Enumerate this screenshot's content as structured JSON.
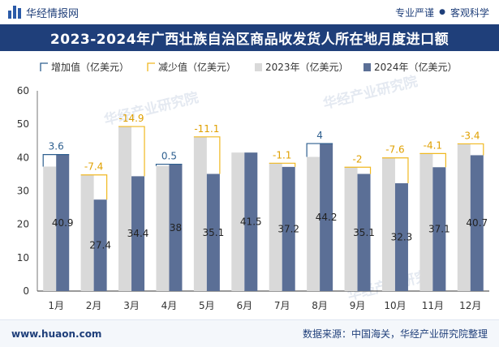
{
  "header": {
    "brand": "华经情报网",
    "tags": [
      "专业严谨",
      "●",
      "客观科学"
    ],
    "title": "2023-2024年广西壮族自治区商品收发货人所在地月度进口额"
  },
  "legend": [
    "增加值（亿美元）",
    "减少值（亿美元）",
    "2023年（亿美元）",
    "2024年（亿美元）"
  ],
  "watermark": "华经产业研究院",
  "footer": {
    "website": "www.huaon.com",
    "source": "数据来源：中国海关，华经产业研究院整理"
  },
  "colors": {
    "bar_2023": "#d9d9d9",
    "bar_2024": "#5b6f96",
    "increase": "#2e5f8f",
    "decrease": "#f0b820",
    "increase_label": "#2e5f8f",
    "decrease_label": "#e0a000"
  },
  "chart_data": {
    "type": "bar",
    "categories": [
      "1月",
      "2月",
      "3月",
      "4月",
      "5月",
      "6月",
      "7月",
      "8月",
      "9月",
      "10月",
      "11月",
      "12月"
    ],
    "series": [
      {
        "name": "2023年（亿美元）",
        "values": [
          37.3,
          34.8,
          49.3,
          37.5,
          46.2,
          41.5,
          38.3,
          40.2,
          37.1,
          39.9,
          41.2,
          44.1
        ]
      },
      {
        "name": "2024年（亿美元）",
        "values": [
          40.9,
          27.4,
          34.4,
          38,
          35.1,
          41.5,
          37.2,
          44.2,
          35.1,
          32.3,
          37.1,
          40.7
        ]
      }
    ],
    "change_labels": [
      "3.6",
      "-7.4",
      "-14.9",
      "0.5",
      "-11.1",
      "",
      "-1.1",
      "4",
      "-2",
      "-7.6",
      "-4.1",
      "-3.4"
    ],
    "value_labels": [
      "40.9",
      "27.4",
      "34.4",
      "38",
      "35.1",
      "41.5",
      "37.2",
      "44.2",
      "35.1",
      "32.3",
      "37.1",
      "40.7"
    ],
    "ylim": [
      0,
      60
    ],
    "yticks": [
      0,
      10,
      20,
      30,
      40,
      50,
      60
    ],
    "xlabel": "",
    "ylabel": ""
  }
}
